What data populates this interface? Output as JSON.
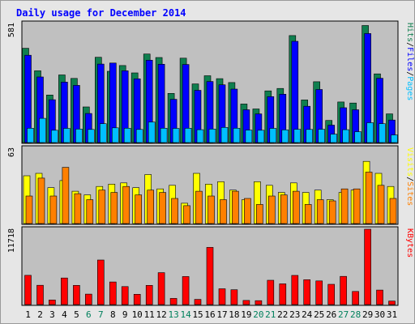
{
  "chart_data": {
    "type": "bar",
    "title": "Daily usage for December 2014",
    "categories": [
      "1",
      "2",
      "3",
      "4",
      "5",
      "6",
      "7",
      "8",
      "9",
      "10",
      "11",
      "12",
      "13",
      "14",
      "15",
      "16",
      "17",
      "18",
      "19",
      "20",
      "21",
      "22",
      "23",
      "24",
      "25",
      "26",
      "27",
      "28",
      "29",
      "30",
      "31"
    ],
    "weekend_days": [
      "6",
      "7",
      "13",
      "14",
      "20",
      "21",
      "27",
      "28"
    ],
    "panels": [
      {
        "id": "hits-files-pages",
        "ymax_label": "581",
        "ymax": 581,
        "legend": [
          "Pages",
          "/",
          "Files",
          "/",
          "Hits"
        ],
        "series": [
          {
            "name": "Hits",
            "color": "#0f7f4f",
            "values": [
              460,
              350,
              232,
              330,
              313,
              174,
              416,
              348,
              376,
              340,
              432,
              415,
              240,
              412,
              286,
              326,
              312,
              293,
              188,
              164,
              252,
              264,
              522,
              208,
              297,
              108,
              198,
              193,
              571,
              335,
              140
            ]
          },
          {
            "name": "Files",
            "color": "#0000ff",
            "values": [
              426,
              320,
              209,
              295,
              279,
              142,
              383,
              388,
              350,
              311,
              402,
              382,
              211,
              381,
              255,
              298,
              282,
              261,
              160,
              140,
              224,
              236,
              494,
              177,
              259,
              85,
              170,
              160,
              532,
              314,
              110
            ]
          },
          {
            "name": "Pages",
            "color": "#00bfff",
            "values": [
              70,
              118,
              60,
              69,
              66,
              64,
              92,
              72,
              70,
              64,
              100,
              70,
              69,
              70,
              63,
              66,
              74,
              70,
              61,
              60,
              69,
              62,
              65,
              64,
              65,
              41,
              63,
              53,
              97,
              92,
              37
            ]
          }
        ]
      },
      {
        "id": "visits-sites",
        "ymax_label": "63",
        "ymax": 63,
        "legend": [
          "Sites",
          "/",
          "Visits"
        ],
        "series": [
          {
            "name": "Visits",
            "color": "#ffff00",
            "values": [
              40,
              42,
              30,
              36,
              27,
              24,
              31,
              33,
              34,
              30,
              41,
              29,
              32,
              17,
              42,
              33,
              35,
              28,
              20,
              35,
              32,
              26,
              34,
              26,
              28,
              20,
              26,
              28,
              52,
              42,
              31
            ]
          },
          {
            "name": "Sites",
            "color": "#ff8000",
            "values": [
              23,
              38,
              23,
              47,
              25,
              20,
              28,
              26,
              31,
              24,
              28,
              26,
              21,
              15,
              27,
              23,
              20,
              27,
              21,
              16,
              23,
              24,
              27,
              16,
              20,
              19,
              29,
              29,
              43,
              32,
              21
            ]
          }
        ]
      },
      {
        "id": "kbytes",
        "ymax_label": "11718",
        "ymax": 11718,
        "legend": [
          "KBytes"
        ],
        "series": [
          {
            "name": "KBytes",
            "color": "#ff0000",
            "values": [
              4550,
              3000,
              710,
              4130,
              2990,
              1620,
              6930,
              3510,
              2800,
              1600,
              2990,
              4970,
              960,
              4360,
              810,
              8890,
              2460,
              2310,
              640,
              600,
              3780,
              3220,
              4530,
              3870,
              3680,
              3150,
              4380,
              2040,
              11720,
              2260,
              540
            ]
          }
        ]
      }
    ],
    "colors": {
      "background": "#c0c0c0",
      "frame": "#e6e6e6",
      "title": "#0000ff",
      "weekday_label": "#000000",
      "weekend_label": "#00805c",
      "grid": "#000000"
    }
  }
}
